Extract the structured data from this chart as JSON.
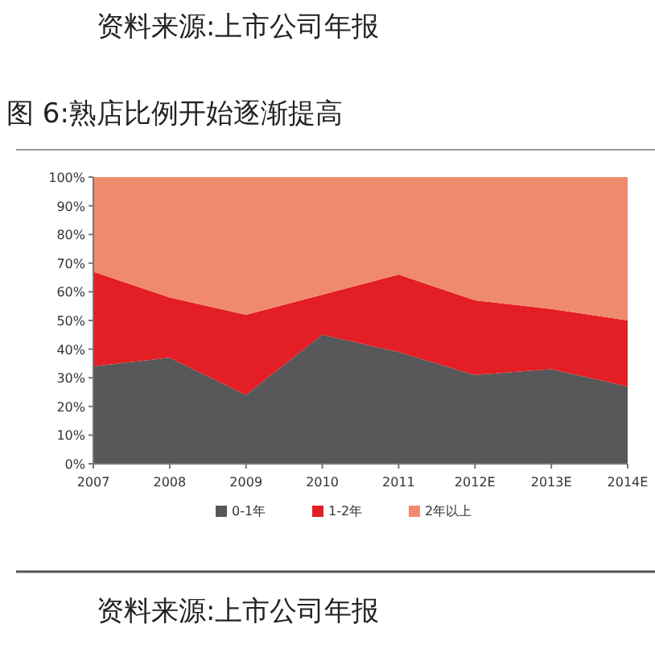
{
  "chart_data": {
    "type": "area",
    "stacked": true,
    "title": "图 6:熟店比例开始逐渐提高",
    "annotations": [
      "资料来源:上市公司年报",
      "资料来源:上市公司年报"
    ],
    "categories": [
      "2007",
      "2008",
      "2009",
      "2010",
      "2011",
      "2012E",
      "2013E",
      "2014E"
    ],
    "series": [
      {
        "name": "0-1年",
        "color": "#58585a",
        "values": [
          34,
          37,
          24,
          45,
          39,
          31,
          33,
          27
        ]
      },
      {
        "name": "1-2年",
        "color": "#e31e24",
        "values": [
          33,
          21,
          28,
          14,
          27,
          26,
          21,
          23
        ]
      },
      {
        "name": "2年以上",
        "color": "#f08a6c",
        "values": [
          33,
          42,
          48,
          41,
          34,
          43,
          46,
          50
        ]
      }
    ],
    "ylim": [
      0,
      100
    ],
    "yticks": [
      {
        "value": 0,
        "label": "0%"
      },
      {
        "value": 10,
        "label": "10%"
      },
      {
        "value": 20,
        "label": "20%"
      },
      {
        "value": 30,
        "label": "30%"
      },
      {
        "value": 40,
        "label": "40%"
      },
      {
        "value": 50,
        "label": "50%"
      },
      {
        "value": 60,
        "label": "60%"
      },
      {
        "value": 70,
        "label": "70%"
      },
      {
        "value": 80,
        "label": "80%"
      },
      {
        "value": 90,
        "label": "90%"
      },
      {
        "value": 100,
        "label": "100%"
      }
    ],
    "grid": false,
    "legend": "bottom"
  }
}
